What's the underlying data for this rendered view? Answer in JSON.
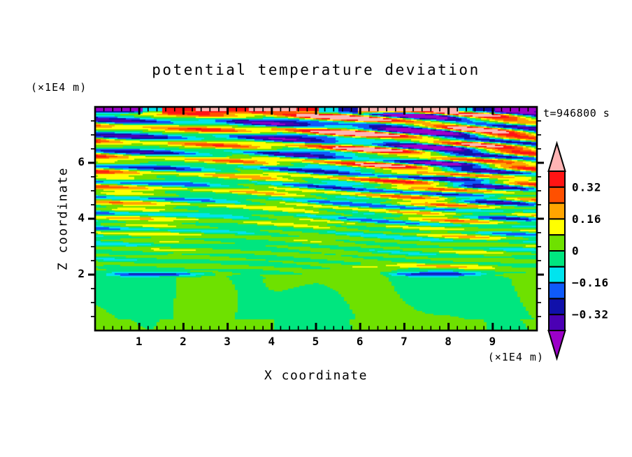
{
  "title": "potential temperature deviation",
  "annotations": {
    "time_label": "t=946800 s",
    "z_unit_label": "(×1E4 m)",
    "x_unit_label": "(×1E4 m)"
  },
  "axes": {
    "x": {
      "label": "X coordinate",
      "min": 0,
      "max": 10,
      "major_ticks": [
        1,
        2,
        3,
        4,
        5,
        6,
        7,
        8,
        9
      ],
      "minor_step": 0.2,
      "unit": "×1E4 m"
    },
    "z": {
      "label": "Z coordinate",
      "min": 0,
      "max": 8,
      "major_ticks": [
        2,
        4,
        6
      ],
      "minor_step": 0.5,
      "unit": "×1E4 m"
    }
  },
  "colorbar": {
    "cells_top_to_bottom": [
      "#FF1414",
      "#FF5000",
      "#FFA500",
      "#FFFF00",
      "#6EE100",
      "#00E67F",
      "#00E4EE",
      "#0F5AFA",
      "#1010AA",
      "#4B00B4"
    ],
    "arrow_top": "#FFB4B4",
    "arrow_bottom": "#9C00C8",
    "labels": [
      {
        "text": "0.32",
        "boundary": 1
      },
      {
        "text": "0.16",
        "boundary": 3
      },
      {
        "text": "0",
        "boundary": 5
      },
      {
        "text": "−0.16",
        "boundary": 7
      },
      {
        "text": "−0.32",
        "boundary": 9
      }
    ]
  },
  "chart_data": {
    "type": "heatmap",
    "title": "potential temperature deviation",
    "xlabel": "X coordinate (×1E4 m)",
    "ylabel": "Z coordinate (×1E4 m)",
    "time_annotation": "t=946800 s",
    "x_range": [
      0,
      10
    ],
    "z_range": [
      0,
      8
    ],
    "contour_interval": 0.08,
    "contour_levels": [
      -0.4,
      -0.32,
      -0.24,
      -0.16,
      -0.08,
      0,
      0.08,
      0.16,
      0.24,
      0.32,
      0.4
    ],
    "palette": [
      "#9C00C8",
      "#4B00B4",
      "#1010AA",
      "#0F5AFA",
      "#00E4EE",
      "#00E67F",
      "#6EE100",
      "#FFFF00",
      "#FFA500",
      "#FF5000",
      "#FF1414",
      "#FFB4B4"
    ],
    "colorbar_labeled_values": [
      0.32,
      0.16,
      0,
      -0.16,
      -0.32
    ],
    "description": "Filled-contour x-z cross-section of potential temperature deviation at t=946800 s. Smooth weak anomalies (|v|<0.08, green tones) below z~2x1E4 m, a thin strong negative (navy) shear layer near z~2 with thin warm streaks just above, then increasingly intense, slightly right-descending wave-like horizontal banding whose amplitude grows with height, saturating past +/-0.4 (pink / purple) near the top; a pink band with purple patches runs along the top edge.",
    "field_model": {
      "amp_base": 0.08,
      "amp_growth": 0.115,
      "amp_start_z": 2.45,
      "amp_max": 0.6,
      "blend_z": 1.82,
      "blend_width": 0.55,
      "shear_layer_z": 2.02,
      "shear_layer_strength": -0.36,
      "warm_layer_z": 2.3,
      "warm_layer_strength": 0.2,
      "top_band_z": 7.72
    },
    "top_band_segments": [
      [
        0,
        1.05,
        -0.46
      ],
      [
        1.05,
        1.5,
        -0.12
      ],
      [
        1.5,
        2.3,
        0.36
      ],
      [
        2.3,
        2.95,
        0.46
      ],
      [
        2.95,
        3.5,
        0.36
      ],
      [
        3.5,
        4.55,
        0.46
      ],
      [
        4.55,
        5.05,
        0.36
      ],
      [
        5.05,
        5.5,
        -0.12
      ],
      [
        5.5,
        5.95,
        -0.28
      ],
      [
        5.95,
        8.2,
        0.46
      ],
      [
        8.2,
        8.55,
        -0.12
      ],
      [
        8.55,
        9.05,
        -0.28
      ],
      [
        9.05,
        10.01,
        -0.46
      ]
    ]
  }
}
